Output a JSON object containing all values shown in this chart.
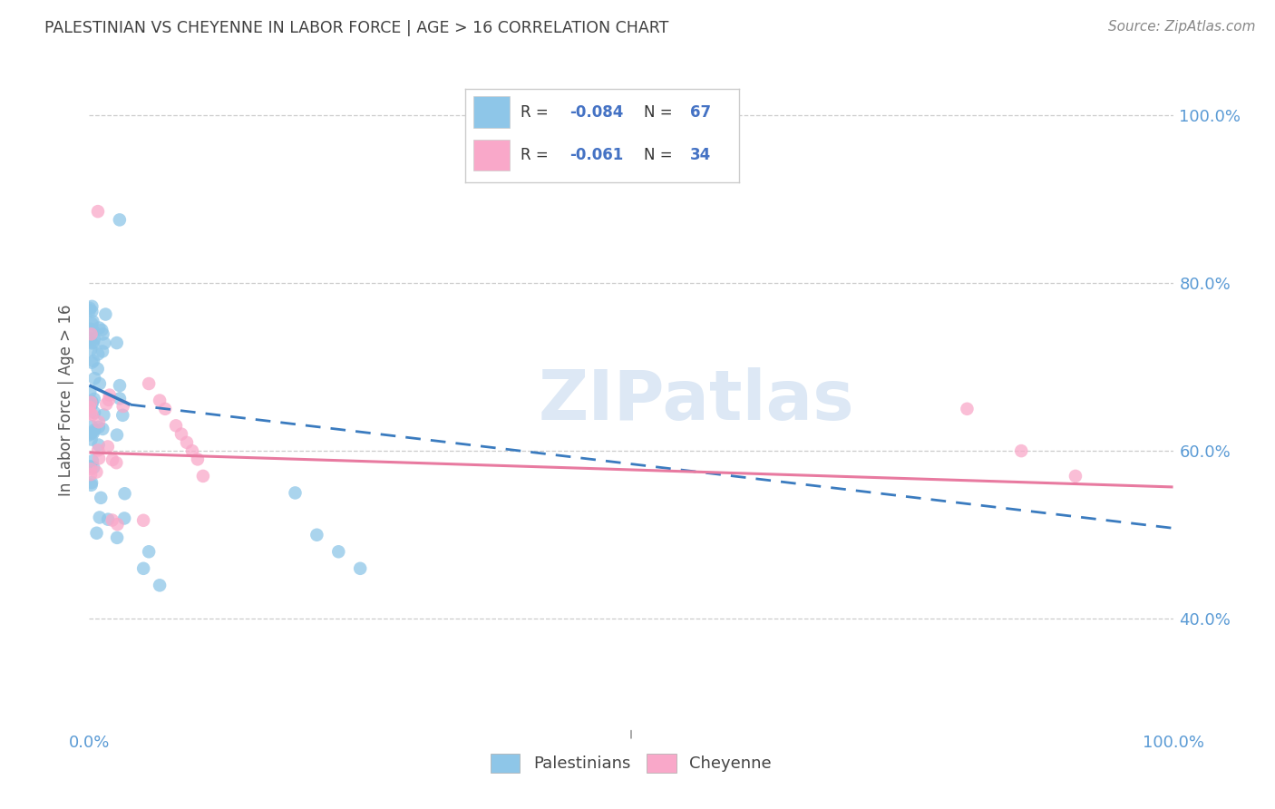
{
  "title": "PALESTINIAN VS CHEYENNE IN LABOR FORCE | AGE > 16 CORRELATION CHART",
  "source": "Source: ZipAtlas.com",
  "ylabel": "In Labor Force | Age > 16",
  "r_palestinian": -0.084,
  "n_palestinian": 67,
  "r_cheyenne": -0.061,
  "n_cheyenne": 34,
  "blue_scatter_color": "#8ec6e8",
  "pink_scatter_color": "#f9a8c9",
  "blue_line_color": "#3a7bbf",
  "pink_line_color": "#e87aa0",
  "watermark_color": "#dde8f5",
  "grid_color": "#cccccc",
  "tick_color": "#5b9bd5",
  "title_color": "#404040",
  "source_color": "#888888",
  "ylabel_color": "#555555",
  "legend_r_color": "#4472c4",
  "legend_n_color": "#4472c4",
  "legend_label_color": "#333333",
  "xlim": [
    0.0,
    1.0
  ],
  "ylim": [
    0.27,
    1.05
  ],
  "yticks": [
    0.4,
    0.6,
    0.8,
    1.0
  ],
  "ytick_labels": [
    "40.0%",
    "60.0%",
    "80.0%",
    "100.0%"
  ],
  "xtick_labels": [
    "0.0%",
    "100.0%"
  ],
  "blue_trend_x0": 0.0,
  "blue_trend_y0": 0.678,
  "blue_trend_x1": 0.038,
  "blue_trend_y1": 0.655,
  "blue_trend_x2": 1.0,
  "blue_trend_y2": 0.508,
  "pink_trend_x0": 0.0,
  "pink_trend_y0": 0.598,
  "pink_trend_x1": 1.0,
  "pink_trend_y1": 0.557
}
